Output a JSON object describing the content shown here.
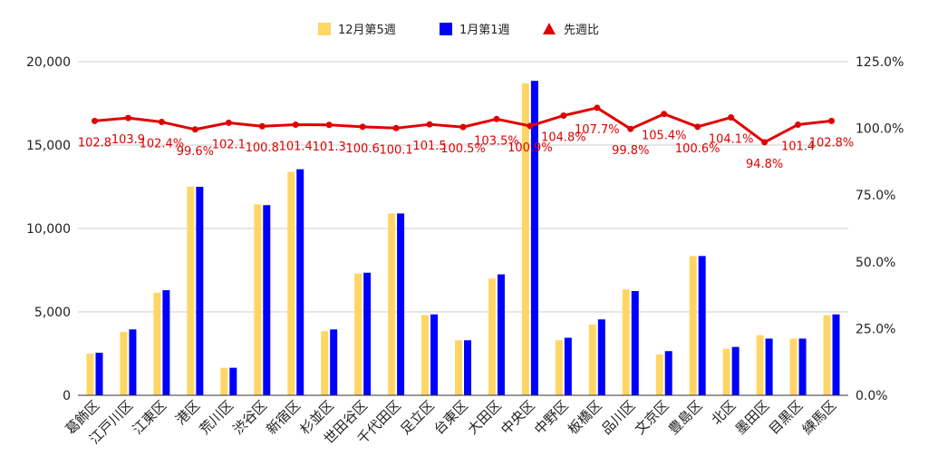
{
  "colors": {
    "series_a": "#FFD666",
    "series_b": "#0000FF",
    "ratio_line": "#E00000",
    "grid": "#CCCCCC",
    "axis": "#333333"
  },
  "legend": [
    {
      "label": "12月第5週",
      "icon": "square-swatch"
    },
    {
      "label": "1月第1週",
      "icon": "square-swatch"
    },
    {
      "label": "先週比",
      "icon": "triangle-marker"
    }
  ],
  "chart_data": {
    "type": "bar",
    "categories": [
      "葛飾区",
      "江戸川区",
      "江東区",
      "港区",
      "荒川区",
      "渋谷区",
      "新宿区",
      "杉並区",
      "世田谷区",
      "千代田区",
      "足立区",
      "台東区",
      "大田区",
      "中央区",
      "中野区",
      "板橋区",
      "品川区",
      "文京区",
      "豊島区",
      "北区",
      "墨田区",
      "目黒区",
      "練馬区"
    ],
    "series": [
      {
        "name": "12月第5週",
        "type": "bar",
        "axis": "left",
        "values": [
          2500,
          3800,
          6150,
          12500,
          1650,
          11450,
          13400,
          3850,
          7300,
          10900,
          4800,
          3300,
          7000,
          18700,
          3300,
          4250,
          6350,
          2450,
          8350,
          2800,
          3600,
          3400,
          4800
        ]
      },
      {
        "name": "1月第1週",
        "type": "bar",
        "axis": "left",
        "values": [
          2550,
          3950,
          6300,
          12500,
          1650,
          11400,
          13550,
          3950,
          7350,
          10900,
          4850,
          3300,
          7250,
          18850,
          3450,
          4550,
          6250,
          2650,
          8350,
          2900,
          3400,
          3400,
          4850
        ]
      },
      {
        "name": "先週比",
        "type": "line",
        "axis": "right",
        "marker": "triangle",
        "values": [
          102.8,
          103.9,
          102.4,
          99.6,
          102.1,
          100.8,
          101.4,
          101.3,
          100.6,
          100.1,
          101.5,
          100.5,
          103.5,
          100.9,
          104.8,
          107.7,
          99.8,
          105.4,
          100.6,
          104.1,
          94.8,
          101.4,
          102.8
        ]
      }
    ],
    "data_labels": [
      "102.8",
      "103.9",
      "102.4%",
      "99.6%",
      "102.1",
      "100.8",
      "101.4",
      "101.3",
      "100.6",
      "100.1",
      "101.5",
      "100.5%",
      "103.5%",
      "100.9%",
      "104.8%",
      "107.7%",
      "99.8%",
      "105.4%",
      "100.6%",
      "104.1%",
      "94.8%",
      "101.4",
      "102.8%"
    ],
    "y_left": {
      "min": 0,
      "max": 20000,
      "ticks": [
        0,
        5000,
        10000,
        15000,
        20000
      ],
      "tick_labels": [
        "0",
        "5,000",
        "10,000",
        "15,000",
        "20,000"
      ]
    },
    "y_right": {
      "min": 0,
      "max": 125,
      "ticks": [
        0,
        25,
        50,
        75,
        100,
        125
      ],
      "tick_labels": [
        "0.0%",
        "25.0%",
        "50.0%",
        "75.0%",
        "100.0%",
        "125.0%"
      ]
    },
    "grid": true,
    "legend_position": "top-center"
  }
}
